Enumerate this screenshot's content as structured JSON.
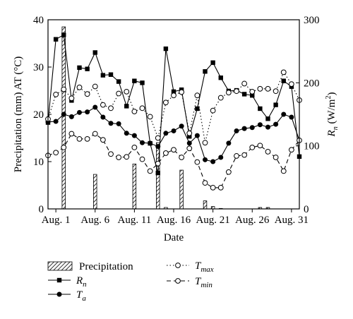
{
  "chart_data": {
    "type": "bar+line",
    "xlabel": "Date",
    "ylabel_left": "Precipitation (mm) AT (°C)",
    "ylabel_right_main": "R",
    "ylabel_right_sub": "n",
    "ylabel_right_unit": " (W/m",
    "ylabel_right_sup": "2",
    "ylabel_right_close": ")",
    "ylim_left": [
      0,
      40
    ],
    "ylim_right": [
      0,
      300
    ],
    "left_ticks": [
      "0",
      "10",
      "20",
      "30",
      "40"
    ],
    "left_tick_values": [
      0,
      10,
      20,
      30,
      40
    ],
    "right_ticks": [
      "0",
      "100",
      "200",
      "300"
    ],
    "right_tick_values": [
      0,
      100,
      200,
      300
    ],
    "x_ticks": [
      "Aug. 1",
      "Aug. 6",
      "Aug. 11",
      "Aug. 16",
      "Aug. 21",
      "Aug. 26",
      "Aug. 31"
    ],
    "x_tick_days": [
      1,
      6,
      11,
      16,
      21,
      26,
      31
    ],
    "xlim": [
      0,
      32
    ],
    "grid": false,
    "legend_position": "below",
    "days": [
      0,
      1,
      2,
      3,
      4,
      5,
      6,
      7,
      8,
      9,
      10,
      11,
      12,
      13,
      14,
      15,
      16,
      17,
      18,
      19,
      20,
      21,
      22,
      23,
      24,
      25,
      26,
      27,
      28,
      29,
      30,
      31,
      32
    ],
    "series": [
      {
        "name": "Precipitation",
        "kind": "bar",
        "axis": "left",
        "values": [
          0,
          0,
          38.5,
          0,
          0,
          0,
          7.3,
          0,
          0,
          0,
          0,
          9.5,
          0,
          0,
          14,
          0.3,
          0,
          8.2,
          0,
          0,
          1.7,
          0.5,
          0.1,
          0,
          0,
          0,
          0,
          0.3,
          0.3,
          0,
          0,
          0,
          0
        ]
      },
      {
        "name": "Rn",
        "label_main": "R",
        "label_sub": "n",
        "kind": "line",
        "marker": "filled-square",
        "line": "solid",
        "axis": "right",
        "values": [
          137,
          269,
          276,
          172,
          224,
          222,
          248,
          212,
          213,
          202,
          163,
          203,
          200,
          104,
          57,
          254,
          186,
          189,
          115,
          159,
          218,
          232,
          208,
          187,
          188,
          182,
          180,
          159,
          143,
          165,
          203,
          194,
          83
        ]
      },
      {
        "name": "Ta",
        "label_main": "T",
        "label_sub": "a",
        "kind": "line",
        "marker": "filled-circle",
        "line": "solid",
        "axis": "left",
        "values": [
          18.4,
          18.5,
          20.0,
          19.5,
          20.4,
          20.5,
          21.5,
          19.4,
          18.1,
          18.0,
          16.0,
          15.5,
          14.0,
          13.9,
          13.2,
          16.0,
          16.5,
          17.5,
          13.9,
          15.5,
          10.4,
          10.0,
          10.9,
          13.9,
          16.5,
          17.0,
          17.2,
          17.8,
          17.3,
          17.9,
          20.0,
          19.4,
          14.5
        ]
      },
      {
        "name": "Tmax",
        "label_main": "T",
        "label_sub": "max",
        "kind": "line",
        "marker": "open-circle",
        "line": "dotted",
        "axis": "left",
        "values": [
          19.0,
          24.2,
          25.3,
          23.4,
          25.7,
          24.3,
          25.9,
          22.0,
          21.3,
          24.4,
          24.8,
          20.6,
          21.3,
          19.5,
          15.0,
          22.5,
          24.0,
          24.7,
          16.0,
          24.0,
          14.0,
          20.8,
          23.5,
          24.6,
          24.9,
          26.5,
          24.8,
          25.4,
          25.4,
          24.9,
          28.9,
          26.4,
          23.0
        ]
      },
      {
        "name": "Tmin",
        "label_main": "T",
        "label_sub": "min",
        "kind": "line",
        "marker": "open-circle",
        "line": "dashed",
        "axis": "left",
        "values": [
          11.3,
          11.9,
          13.0,
          15.9,
          14.8,
          14.8,
          15.9,
          14.6,
          11.6,
          10.9,
          11.0,
          13.0,
          10.5,
          8.0,
          9.6,
          11.8,
          12.5,
          10.9,
          12.8,
          9.9,
          5.5,
          4.5,
          4.5,
          7.8,
          11.2,
          11.4,
          13.0,
          13.4,
          12.1,
          10.9,
          8.0,
          12.5,
          14.5
        ]
      }
    ]
  }
}
